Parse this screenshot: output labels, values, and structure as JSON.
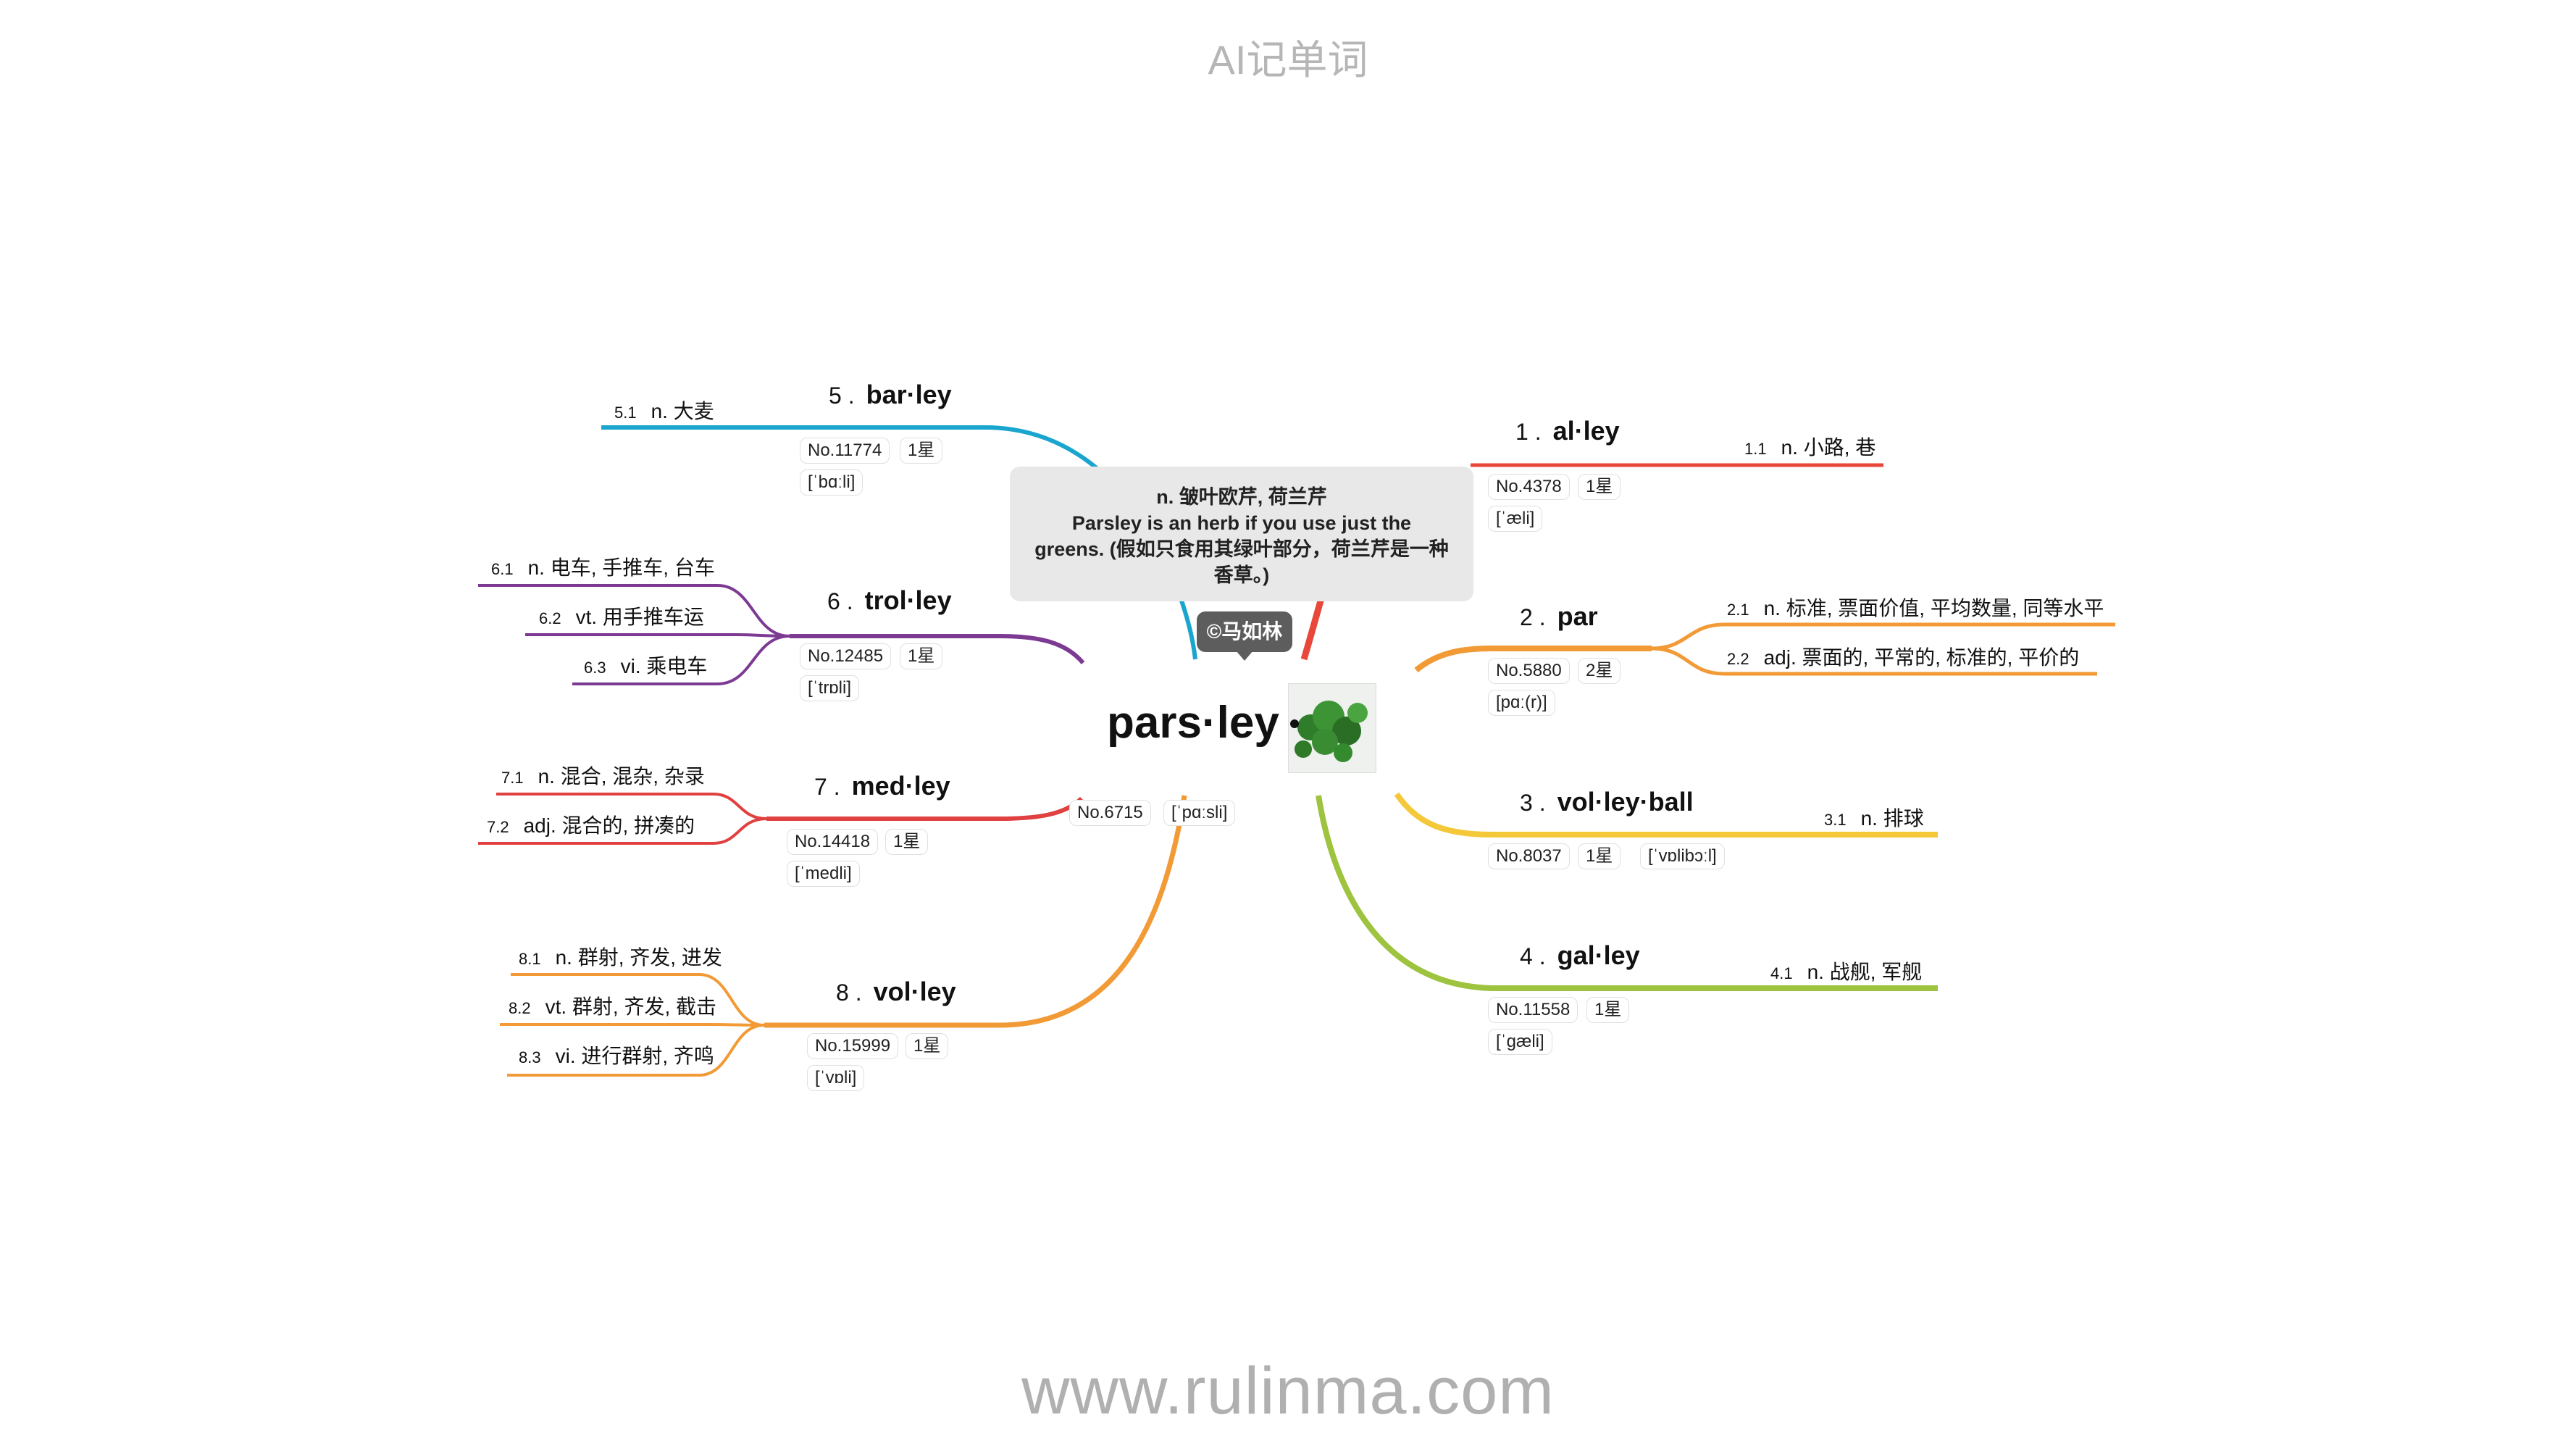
{
  "header_title": "AI记单词",
  "footer_url": "www.rulinma.com",
  "central": {
    "word": "pars·ley",
    "number": "No.6715",
    "phonetic": "[ˈpɑːsli]",
    "tooltip_line1": "n. 皱叶欧芹, 荷兰芹",
    "tooltip_line2": "Parsley is an herb if you use just the",
    "tooltip_line3": "greens. (假如只食用其绿叶部分，荷兰芹是一种",
    "tooltip_line4": "香草。)",
    "author": "©马如林",
    "image_desc": "parsley-photo"
  },
  "branches": [
    {
      "num": "1 .",
      "word": "al·ley",
      "no": "No.4378",
      "stars": "1星",
      "phonetic": "[ˈæli]",
      "color": "#e8473a",
      "defs": [
        {
          "n": "1.1",
          "t": "n. 小路, 巷"
        }
      ]
    },
    {
      "num": "2 .",
      "word": "par",
      "no": "No.5880",
      "stars": "2星",
      "phonetic": "[pɑː(r)]",
      "color": "#f29a36",
      "defs": [
        {
          "n": "2.1",
          "t": "n. 标准, 票面价值, 平均数量, 同等水平"
        },
        {
          "n": "2.2",
          "t": "adj. 票面的, 平常的, 标准的, 平价的"
        }
      ]
    },
    {
      "num": "3 .",
      "word": "vol·ley·ball",
      "no": "No.8037",
      "stars": "1星",
      "phonetic": "[ˈvɒlibɔːl]",
      "color": "#f5c83a",
      "defs": [
        {
          "n": "3.1",
          "t": "n. 排球"
        }
      ]
    },
    {
      "num": "4 .",
      "word": "gal·ley",
      "no": "No.11558",
      "stars": "1星",
      "phonetic": "[ˈɡæli]",
      "color": "#9dc33f",
      "defs": [
        {
          "n": "4.1",
          "t": "n. 战舰, 军舰"
        }
      ]
    },
    {
      "num": "5 .",
      "word": "bar·ley",
      "no": "No.11774",
      "stars": "1星",
      "phonetic": "[ˈbɑːli]",
      "color": "#1aa5cf",
      "defs": [
        {
          "n": "5.1",
          "t": "n. 大麦"
        }
      ]
    },
    {
      "num": "6 .",
      "word": "trol·ley",
      "no": "No.12485",
      "stars": "1星",
      "phonetic": "[ˈtrɒli]",
      "color": "#7d3a93",
      "defs": [
        {
          "n": "6.1",
          "t": "n. 电车, 手推车, 台车"
        },
        {
          "n": "6.2",
          "t": "vt. 用手推车运"
        },
        {
          "n": "6.3",
          "t": "vi. 乘电车"
        }
      ]
    },
    {
      "num": "7 .",
      "word": "med·ley",
      "no": "No.14418",
      "stars": "1星",
      "phonetic": "[ˈmedli]",
      "color": "#e04040",
      "defs": [
        {
          "n": "7.1",
          "t": "n. 混合, 混杂, 杂录"
        },
        {
          "n": "7.2",
          "t": "adj. 混合的, 拼凑的"
        }
      ]
    },
    {
      "num": "8 .",
      "word": "vol·ley",
      "no": "No.15999",
      "stars": "1星",
      "phonetic": "[ˈvɒli]",
      "color": "#f29a36",
      "defs": [
        {
          "n": "8.1",
          "t": "n. 群射, 齐发, 进发"
        },
        {
          "n": "8.2",
          "t": "vt. 群射, 齐发, 截击"
        },
        {
          "n": "8.3",
          "t": "vi. 进行群射, 齐鸣"
        }
      ]
    }
  ]
}
